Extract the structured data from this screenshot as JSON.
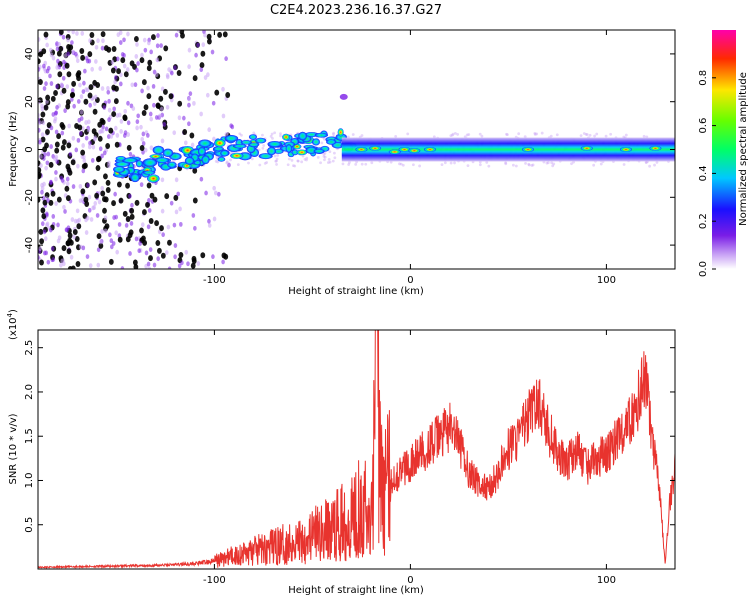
{
  "title": "C2E4.2023.236.16.37.G27",
  "colors": {
    "snr_line": "#e8332e",
    "spectro_low": "#8a2be2",
    "spectro_high": "#ff0000"
  },
  "chart_data": [
    {
      "type": "heatmap",
      "xlabel": "Height of straight line (km)",
      "ylabel": "Frequency (Hz)",
      "xlim": [
        -190,
        135
      ],
      "ylim": [
        -50,
        50
      ],
      "x_ticks": [
        -100,
        0,
        100
      ],
      "x_tick_labels": [
        "-100",
        "0",
        "100"
      ],
      "y_ticks": [
        -40,
        -20,
        0,
        20,
        40
      ],
      "y_tick_labels": [
        "-40",
        "-20",
        "0",
        "20",
        "40"
      ],
      "colorbar": {
        "label": "Normalized spectral amplitude",
        "range": [
          0,
          1
        ],
        "ticks": [
          0,
          0.2,
          0.4,
          0.6,
          0.8
        ],
        "tick_labels": [
          "0.0",
          "0.2",
          "0.4",
          "0.6",
          "0.8"
        ],
        "colormap": "rainbow (white→violet→blue→cyan→green→yellow→red→magenta)"
      },
      "features": {
        "broadband_noise_x_range": [
          -190,
          -100
        ],
        "signal_center_frequency": 0,
        "signal_band_halfwidth_hz": [
          3,
          2
        ],
        "signal_x_range": [
          -100,
          135
        ],
        "wavy_segment_x_range": [
          -100,
          -30
        ]
      }
    },
    {
      "type": "line",
      "xlabel": "Height of straight line (km)",
      "ylabel": "SNR (10 * v/v)",
      "y_multiplier_label": "(x10",
      "y_multiplier_exp": "4",
      "y_multiplier_close": ")",
      "xlim": [
        -190,
        135
      ],
      "ylim": [
        0,
        27000
      ],
      "x_ticks": [
        -100,
        0,
        100
      ],
      "x_tick_labels": [
        "-100",
        "0",
        "100"
      ],
      "y_ticks": [
        5000,
        10000,
        15000,
        20000,
        25000
      ],
      "y_tick_labels": [
        "0.5",
        "1.0",
        "1.5",
        "2.0",
        "2.5"
      ],
      "series": [
        {
          "points": [
            [
              -190,
              200
            ],
            [
              -160,
              300
            ],
            [
              -130,
              400
            ],
            [
              -110,
              600
            ],
            [
              -100,
              900
            ],
            [
              -90,
              1500
            ],
            [
              -80,
              2000
            ],
            [
              -70,
              2500
            ],
            [
              -60,
              3000
            ],
            [
              -50,
              3800
            ],
            [
              -40,
              4500
            ],
            [
              -30,
              6000
            ],
            [
              -25,
              8000
            ],
            [
              -20,
              5000
            ],
            [
              -17,
              27000
            ],
            [
              -15,
              9000
            ],
            [
              -10,
              10000
            ],
            [
              -5,
              11000
            ],
            [
              0,
              12000
            ],
            [
              5,
              13000
            ],
            [
              10,
              14000
            ],
            [
              15,
              15000
            ],
            [
              20,
              16000
            ],
            [
              25,
              14000
            ],
            [
              30,
              11000
            ],
            [
              35,
              9500
            ],
            [
              40,
              9000
            ],
            [
              45,
              11000
            ],
            [
              50,
              13500
            ],
            [
              55,
              15000
            ],
            [
              60,
              17000
            ],
            [
              65,
              19000
            ],
            [
              70,
              16000
            ],
            [
              75,
              13000
            ],
            [
              80,
              12000
            ],
            [
              85,
              13500
            ],
            [
              90,
              11500
            ],
            [
              95,
              12500
            ],
            [
              100,
              13000
            ],
            [
              105,
              14500
            ],
            [
              110,
              16000
            ],
            [
              115,
              18000
            ],
            [
              120,
              22000
            ],
            [
              123,
              15000
            ],
            [
              127,
              9000
            ],
            [
              130,
              500
            ],
            [
              132,
              7000
            ],
            [
              135,
              11500
            ]
          ]
        }
      ]
    }
  ]
}
